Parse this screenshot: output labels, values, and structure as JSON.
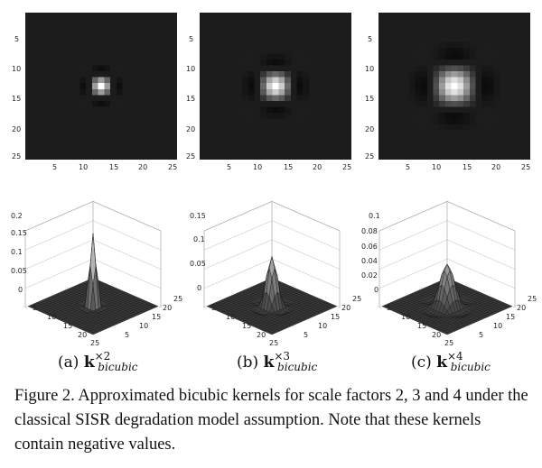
{
  "panels": [
    {
      "id": "a",
      "label_prefix": "(a) ",
      "k": "k",
      "sup": "×2",
      "sub": "bicubic",
      "heat_ticks": [
        "5",
        "10",
        "15",
        "20",
        "25"
      ],
      "surface_z_ticks": [
        "0.2",
        "0.15",
        "0.1",
        "0.05",
        "0"
      ],
      "surface_xy_ticks": [
        "5",
        "10",
        "15",
        "20",
        "25"
      ],
      "peak": 0.2,
      "scale": 2
    },
    {
      "id": "b",
      "label_prefix": "(b) ",
      "k": "k",
      "sup": "×3",
      "sub": "bicubic",
      "heat_ticks": [
        "5",
        "10",
        "15",
        "20",
        "25"
      ],
      "surface_z_ticks": [
        "0.15",
        "0.1",
        "0.05",
        "0"
      ],
      "surface_xy_ticks": [
        "5",
        "10",
        "15",
        "20",
        "25"
      ],
      "peak": 0.1,
      "scale": 3
    },
    {
      "id": "c",
      "label_prefix": "(c) ",
      "k": "k",
      "sup": "×4",
      "sub": "bicubic",
      "heat_ticks": [
        "5",
        "10",
        "15",
        "20",
        "25"
      ],
      "surface_z_ticks": [
        "0.1",
        "0.08",
        "0.06",
        "0.04",
        "0.02",
        "0"
      ],
      "surface_xy_ticks": [
        "5",
        "10",
        "15",
        "20",
        "25"
      ],
      "peak": 0.06,
      "scale": 4
    }
  ],
  "caption": "Figure 2. Approximated bicubic kernels for scale factors 2, 3 and 4 under the classical SISR degradation model assumption. Note that these kernels contain negative values."
}
